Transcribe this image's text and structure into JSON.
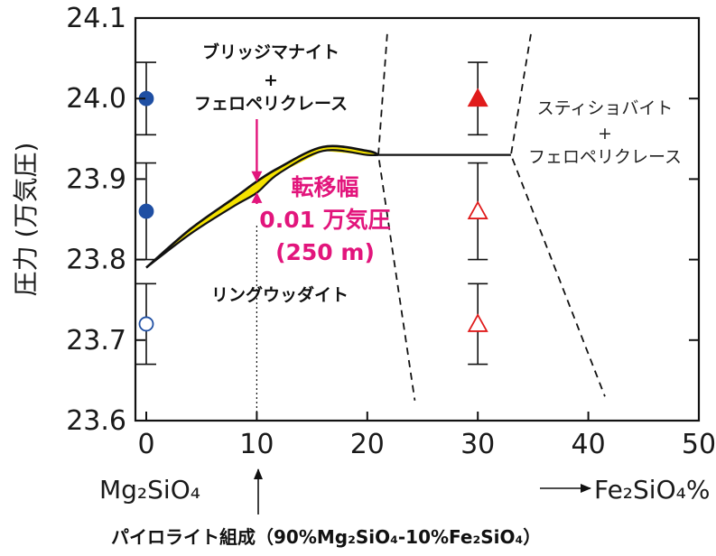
{
  "chart_data": {
    "type": "scatter",
    "ylabel": "圧力 (万気圧)",
    "xlim": [
      0,
      50
    ],
    "ylim": [
      23.6,
      24.1
    ],
    "x_ticks": [
      0,
      10,
      20,
      30,
      40,
      50
    ],
    "y_ticks": [
      "23.6",
      "23.7",
      "23.8",
      "23.9",
      "24.0",
      "24.1"
    ],
    "x_start_label": "Mg₂SiO₄",
    "x_end_label": "Fe₂SiO₄%",
    "bottom_label": "パイロライト組成（90%Mg₂SiO₄-10%Fe₂SiO₄）",
    "regions": {
      "upper_left": [
        "ブリッジマナイト",
        "+",
        "フェロペリクレース"
      ],
      "lower_left": "リングウッダイト",
      "upper_right": [
        "スティショバイト",
        "+",
        "フェロペリクレース"
      ]
    },
    "annotation": [
      "転移幅",
      "0.01 万気圧",
      "(250 m)"
    ],
    "points": [
      {
        "x": 0,
        "y": 24.0,
        "err": 0.045,
        "marker": "circle",
        "fill": "#1f4fa3"
      },
      {
        "x": 0,
        "y": 23.86,
        "err": 0.06,
        "marker": "circle",
        "fill": "#1f4fa3"
      },
      {
        "x": 0,
        "y": 23.72,
        "err": 0.05,
        "marker": "circle",
        "fill": "none"
      },
      {
        "x": 30,
        "y": 24.0,
        "err": 0.045,
        "marker": "triangle",
        "fill": "#e01b1b"
      },
      {
        "x": 30,
        "y": 23.86,
        "err": 0.06,
        "marker": "triangle",
        "fill": "none"
      },
      {
        "x": 30,
        "y": 23.72,
        "err": 0.05,
        "marker": "triangle",
        "fill": "none"
      }
    ],
    "boundary_upper": [
      [
        0,
        23.79
      ],
      [
        4,
        23.838
      ],
      [
        8,
        23.877
      ],
      [
        10,
        23.897
      ],
      [
        12,
        23.914
      ],
      [
        16,
        23.94
      ],
      [
        20,
        23.935
      ],
      [
        21,
        23.93
      ]
    ],
    "boundary_lower": [
      [
        0,
        23.79
      ],
      [
        4,
        23.832
      ],
      [
        8,
        23.867
      ],
      [
        10,
        23.883
      ],
      [
        12,
        23.907
      ],
      [
        16,
        23.935
      ],
      [
        20,
        23.93
      ],
      [
        21,
        23.93
      ]
    ],
    "boundary_flat": [
      [
        21,
        23.93
      ],
      [
        33,
        23.93
      ]
    ],
    "dashed_lines": [
      [
        [
          21.8,
          24.08
        ],
        [
          21,
          23.93
        ],
        [
          24.3,
          23.625
        ]
      ],
      [
        [
          34.8,
          24.08
        ],
        [
          33,
          23.93
        ],
        [
          41.5,
          23.63
        ]
      ]
    ],
    "pyrolite_x": 10,
    "colors": {
      "blue": "#1f4fa3",
      "red": "#e01b1b",
      "magenta": "#e2157c",
      "band": "#f4e200",
      "line": "#111111"
    }
  }
}
